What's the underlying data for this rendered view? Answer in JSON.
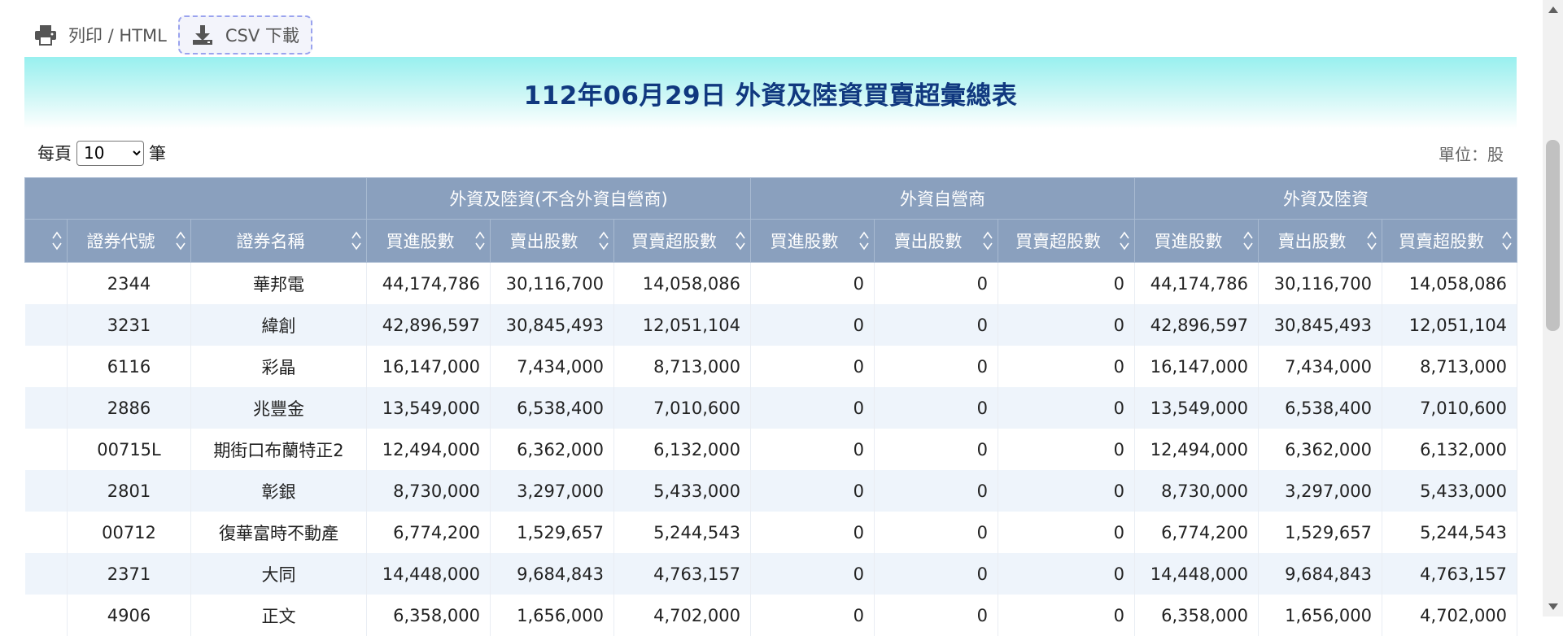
{
  "toolbar": {
    "print_label": "列印 / HTML",
    "csv_label": "CSV 下載"
  },
  "title": "112年06月29日 外資及陸資買賣超彙總表",
  "perpage": {
    "prefix": "每頁",
    "value": "10",
    "suffix": "筆",
    "options": [
      "10"
    ]
  },
  "unit": "單位：股",
  "table": {
    "groups": [
      "外資及陸資(不含外資自營商)",
      "外資自營商",
      "外資及陸資"
    ],
    "columns": [
      "",
      "證券代號",
      "證券名稱",
      "買進股數",
      "賣出股數",
      "買賣超股數",
      "買進股數",
      "賣出股數",
      "買賣超股數",
      "買進股數",
      "賣出股數",
      "買賣超股數"
    ],
    "rows": [
      [
        "2344",
        "華邦電",
        "44,174,786",
        "30,116,700",
        "14,058,086",
        "0",
        "0",
        "0",
        "44,174,786",
        "30,116,700",
        "14,058,086"
      ],
      [
        "3231",
        "緯創",
        "42,896,597",
        "30,845,493",
        "12,051,104",
        "0",
        "0",
        "0",
        "42,896,597",
        "30,845,493",
        "12,051,104"
      ],
      [
        "6116",
        "彩晶",
        "16,147,000",
        "7,434,000",
        "8,713,000",
        "0",
        "0",
        "0",
        "16,147,000",
        "7,434,000",
        "8,713,000"
      ],
      [
        "2886",
        "兆豐金",
        "13,549,000",
        "6,538,400",
        "7,010,600",
        "0",
        "0",
        "0",
        "13,549,000",
        "6,538,400",
        "7,010,600"
      ],
      [
        "00715L",
        "期街口布蘭特正2",
        "12,494,000",
        "6,362,000",
        "6,132,000",
        "0",
        "0",
        "0",
        "12,494,000",
        "6,362,000",
        "6,132,000"
      ],
      [
        "2801",
        "彰銀",
        "8,730,000",
        "3,297,000",
        "5,433,000",
        "0",
        "0",
        "0",
        "8,730,000",
        "3,297,000",
        "5,433,000"
      ],
      [
        "00712",
        "復華富時不動產",
        "6,774,200",
        "1,529,657",
        "5,244,543",
        "0",
        "0",
        "0",
        "6,774,200",
        "1,529,657",
        "5,244,543"
      ],
      [
        "2371",
        "大同",
        "14,448,000",
        "9,684,843",
        "4,763,157",
        "0",
        "0",
        "0",
        "14,448,000",
        "9,684,843",
        "4,763,157"
      ],
      [
        "4906",
        "正文",
        "6,358,000",
        "1,656,000",
        "4,702,000",
        "0",
        "0",
        "0",
        "6,358,000",
        "1,656,000",
        "4,702,000"
      ]
    ]
  },
  "colors": {
    "header_bg": "#8aa0be",
    "title_color": "#10387f",
    "stripe": "#eef4fb"
  },
  "icons": {
    "print": "printer-icon",
    "download": "download-icon",
    "sort": "sort-icon"
  }
}
